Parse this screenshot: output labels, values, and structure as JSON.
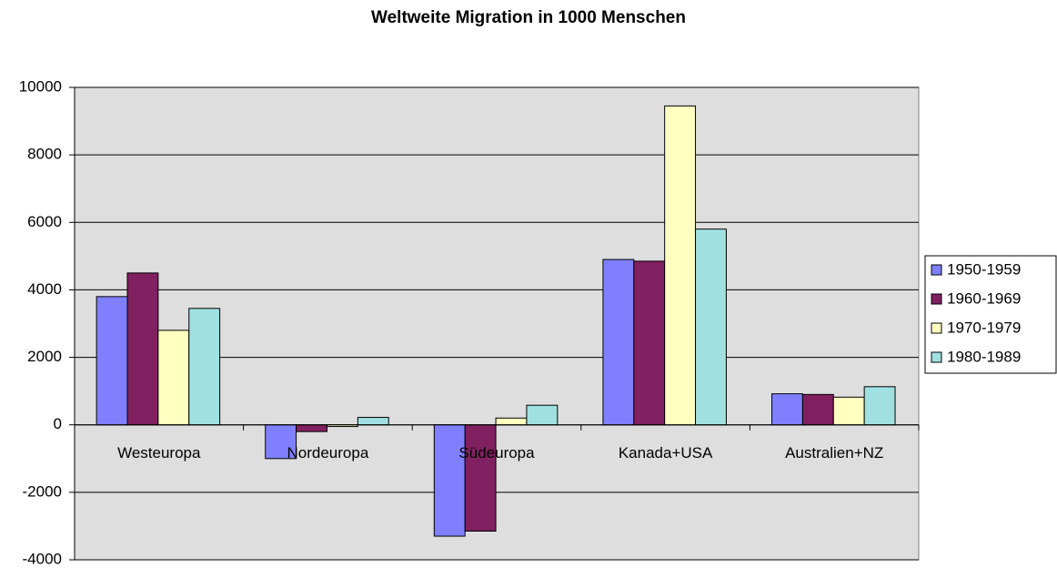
{
  "chart_data": {
    "type": "bar",
    "title": "Weltweite Migration in 1000 Menschen",
    "categories": [
      "Westeuropa",
      "Nordeuropa",
      "Südeuropa",
      "Kanada+USA",
      "Australien+NZ"
    ],
    "series": [
      {
        "name": "1950-1959",
        "color": "#8080ff",
        "values": [
          3800,
          -1000,
          -3300,
          4900,
          920
        ]
      },
      {
        "name": "1960-1969",
        "color": "#802060",
        "values": [
          4500,
          -200,
          -3150,
          4850,
          900
        ]
      },
      {
        "name": "1970-1979",
        "color": "#ffffc0",
        "values": [
          2800,
          -50,
          200,
          9450,
          820
        ]
      },
      {
        "name": "1980-1989",
        "color": "#a0e0e0",
        "values": [
          3450,
          220,
          580,
          5800,
          1130
        ]
      }
    ],
    "ylim": [
      -4000,
      10000
    ],
    "yticks": [
      -4000,
      -2000,
      0,
      2000,
      4000,
      6000,
      8000,
      10000
    ],
    "grid": true,
    "legend": "right"
  }
}
